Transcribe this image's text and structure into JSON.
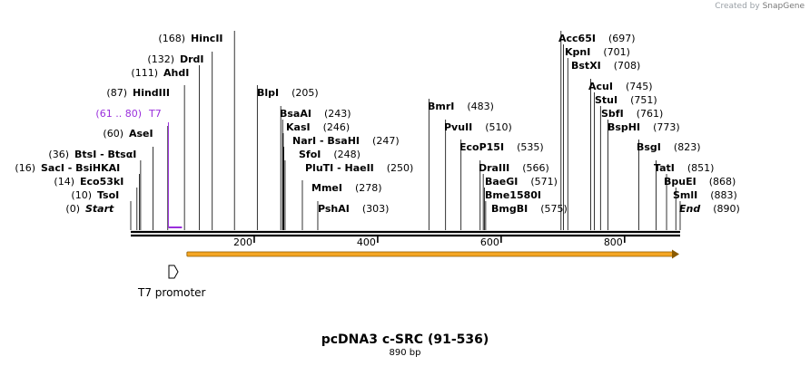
{
  "credit": {
    "prefix": "Created by",
    "brand": "SnapGene"
  },
  "title": "pcDNA3 c-SRC (91-536)",
  "subtitle": "890 bp",
  "sequence_length": 890,
  "ruler": {
    "ticks": [
      200,
      400,
      600,
      800
    ]
  },
  "colors": {
    "feature": "#9a2fdc",
    "orf_fill": "#f5a623",
    "orf_border": "#8a5a00",
    "line": "#000000"
  },
  "promoter": {
    "label": "T7 promoter"
  },
  "feature": {
    "name": "T7",
    "range": "(61 .. 80)",
    "start": 61,
    "end": 80
  },
  "orf": {
    "start": 91,
    "end": 890,
    "direction": "forward"
  },
  "sites": [
    {
      "name": "HincII",
      "pos": "(168)",
      "bp": 168
    },
    {
      "name": "DrdI",
      "pos": "(132)",
      "bp": 132
    },
    {
      "name": "AhdI",
      "pos": "(111)",
      "bp": 111
    },
    {
      "name": "HindIII",
      "pos": "(87)",
      "bp": 87
    },
    {
      "name": "AseI",
      "pos": "(60)",
      "bp": 60
    },
    {
      "name": "BtsI - BtsαI",
      "pos": "(36)",
      "bp": 36
    },
    {
      "name": "SacI - BsiHKAI",
      "pos": "(16)",
      "bp": 16
    },
    {
      "name": "Eco53kI",
      "pos": "(14)",
      "bp": 14
    },
    {
      "name": "TsoI",
      "pos": "(10)",
      "bp": 10
    },
    {
      "name": "Start",
      "pos": "(0)",
      "bp": 0,
      "italic": true
    },
    {
      "name": "BlpI",
      "pos": "(205)",
      "bp": 205
    },
    {
      "name": "BsaAI",
      "pos": "(243)",
      "bp": 243
    },
    {
      "name": "KasI",
      "pos": "(246)",
      "bp": 246
    },
    {
      "name": "NarI - BsaHI",
      "pos": "(247)",
      "bp": 247
    },
    {
      "name": "SfoI",
      "pos": "(248)",
      "bp": 248
    },
    {
      "name": "PluTI - HaeII",
      "pos": "(250)",
      "bp": 250
    },
    {
      "name": "MmeI",
      "pos": "(278)",
      "bp": 278
    },
    {
      "name": "PshAI",
      "pos": "(303)",
      "bp": 303
    },
    {
      "name": "BmrI",
      "pos": "(483)",
      "bp": 483
    },
    {
      "name": "PvuII",
      "pos": "(510)",
      "bp": 510
    },
    {
      "name": "EcoP15I",
      "pos": "(535)",
      "bp": 535
    },
    {
      "name": "DraIII",
      "pos": "(566)",
      "bp": 566
    },
    {
      "name": "BaeGI",
      "pos": "(571)",
      "bp": 571
    },
    {
      "name": "Bme1580I",
      "pos": "",
      "bp": 573
    },
    {
      "name": "BmgBI",
      "pos": "(575)",
      "bp": 575
    },
    {
      "name": "Acc65I",
      "pos": "(697)",
      "bp": 697
    },
    {
      "name": "KpnI",
      "pos": "(701)",
      "bp": 701
    },
    {
      "name": "BstXI",
      "pos": "(708)",
      "bp": 708
    },
    {
      "name": "AcuI",
      "pos": "(745)",
      "bp": 745
    },
    {
      "name": "StuI",
      "pos": "(751)",
      "bp": 751
    },
    {
      "name": "SbfI",
      "pos": "(761)",
      "bp": 761
    },
    {
      "name": "BspHI",
      "pos": "(773)",
      "bp": 773
    },
    {
      "name": "BsgI",
      "pos": "(823)",
      "bp": 823
    },
    {
      "name": "TatI",
      "pos": "(851)",
      "bp": 851
    },
    {
      "name": "BpuEI",
      "pos": "(868)",
      "bp": 868
    },
    {
      "name": "SmlI",
      "pos": "(883)",
      "bp": 883
    },
    {
      "name": "End",
      "pos": "(890)",
      "bp": 890,
      "italic": true
    }
  ]
}
